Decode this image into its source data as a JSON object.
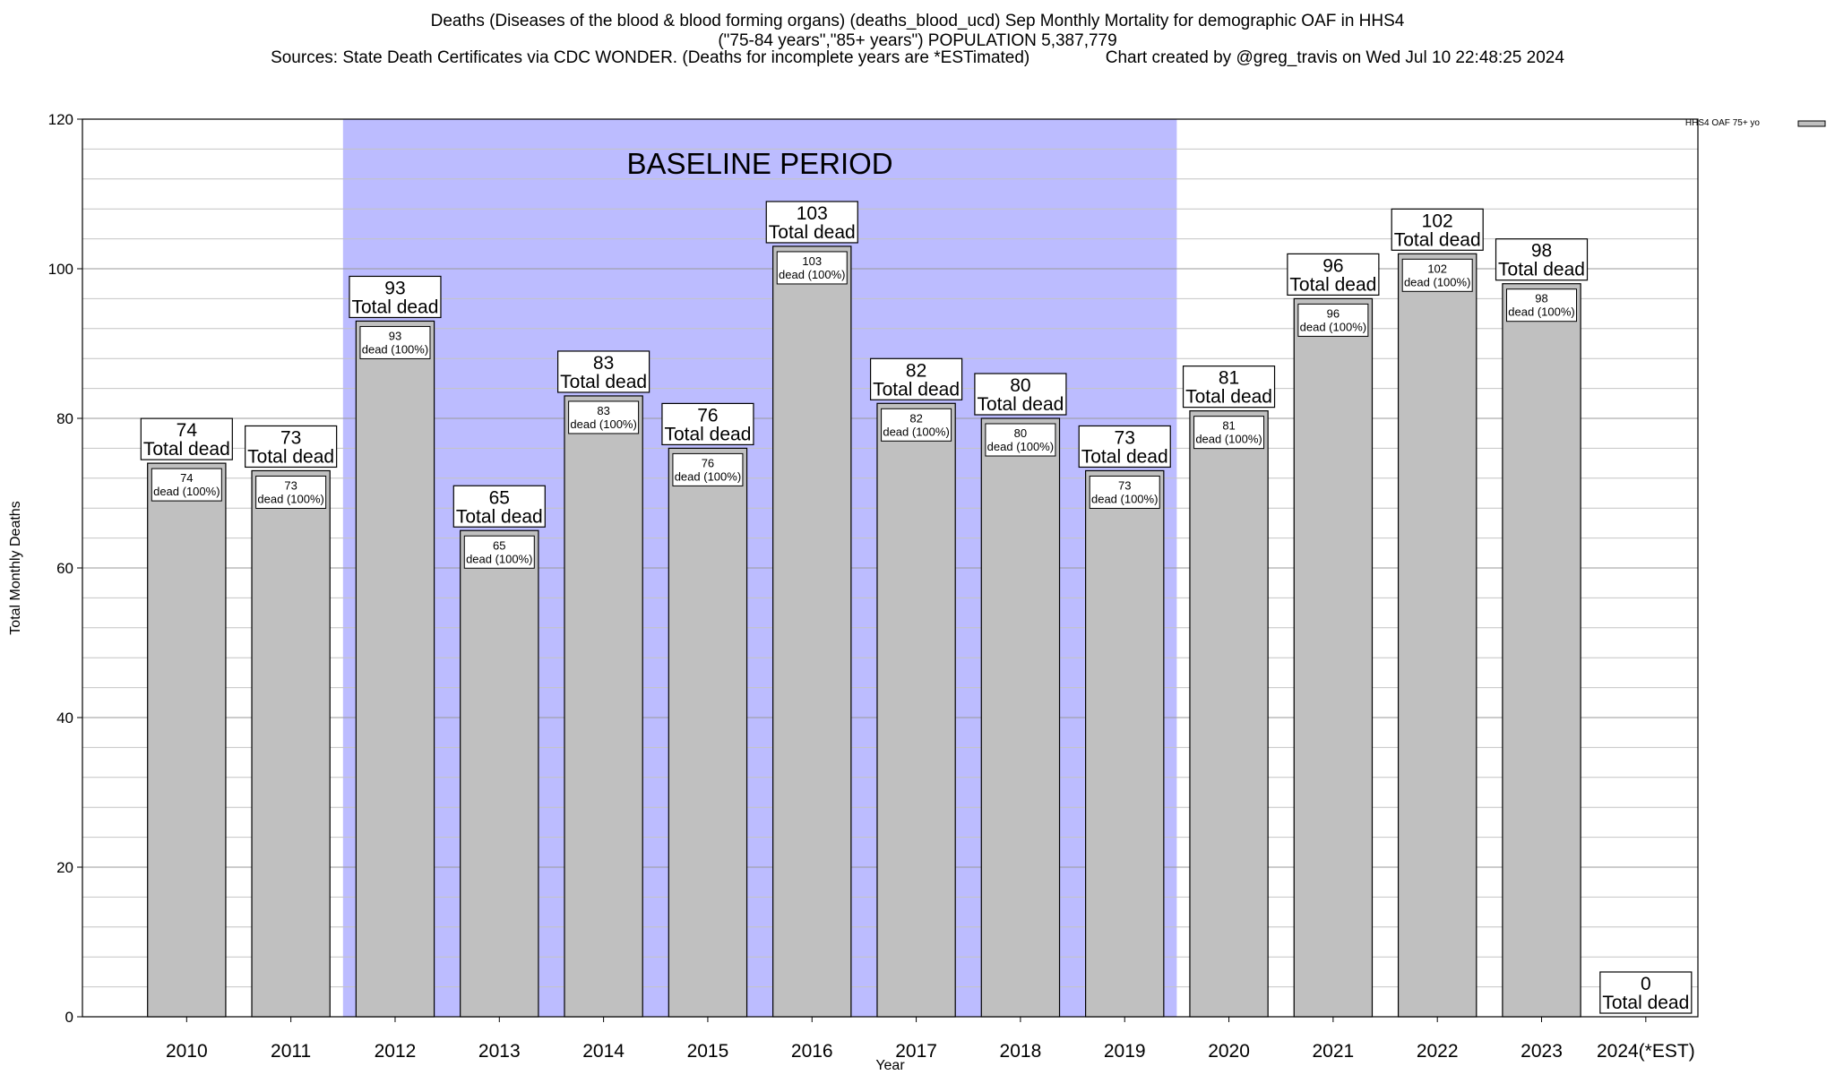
{
  "title_lines": [
    "Deaths (Diseases of the blood & blood forming organs) (deaths_blood_ucd) Sep Monthly Mortality for demographic OAF in HHS4",
    "(\"75-84 years\",\"85+ years\") POPULATION 5,387,779",
    "Sources: State Death Certificates via CDC WONDER. (Deaths for incomplete years are *ESTimated)                Chart created by @greg_travis on Wed Jul 10 22:48:25 2024"
  ],
  "chart_data": {
    "type": "bar",
    "xlabel": "Year",
    "ylabel": "Total Monthly Deaths",
    "ylim": [
      0,
      120
    ],
    "y_major_ticks": [
      0,
      20,
      40,
      60,
      80,
      100,
      120
    ],
    "y_minor_step": 4,
    "grid": true,
    "categories": [
      "2010",
      "2011",
      "2012",
      "2013",
      "2014",
      "2015",
      "2016",
      "2017",
      "2018",
      "2019",
      "2020",
      "2021",
      "2022",
      "2023",
      "2024(*EST)"
    ],
    "series": [
      {
        "name": "HHS4 OAF 75+ yo",
        "color": "#c0c0c0",
        "values": [
          74,
          73,
          93,
          65,
          83,
          76,
          103,
          82,
          80,
          73,
          81,
          96,
          102,
          98,
          0
        ]
      }
    ],
    "outer_label_suffix": "Total dead",
    "inner_label_suffix": "dead (100%)",
    "baseline_period": {
      "label": "BASELINE PERIOD",
      "start": "2012",
      "end": "2019",
      "color": "#bcbcff"
    },
    "legend": {
      "position": "top-right",
      "entries": [
        "HHS4 OAF 75+ yo"
      ]
    }
  }
}
